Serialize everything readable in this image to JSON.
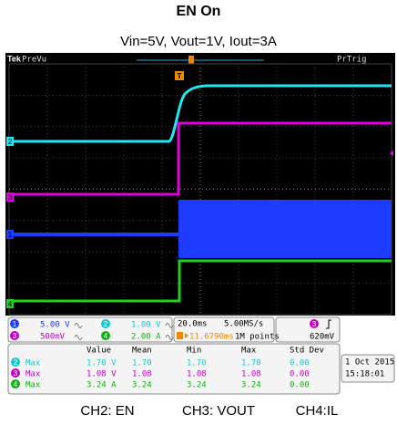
{
  "title": "EN On",
  "subtitle": "Vin=5V, Vout=1V, Iout=3A",
  "scope": {
    "brand": "Tek",
    "mode": "PreVu",
    "trigger_status": "PrTrig",
    "channel_markers": [
      "2",
      "3",
      "1",
      "4"
    ],
    "channels": [
      {
        "id": "1",
        "scale": "5.00 V"
      },
      {
        "id": "2",
        "scale": "1.00 V"
      },
      {
        "id": "3",
        "scale": "500mV"
      },
      {
        "id": "4",
        "scale": "2.00 A"
      }
    ],
    "timebase": {
      "scale": "20.0ms",
      "sample_rate": "5.00MS/s",
      "trigger_position": "11.6790ms",
      "record_length": "1M points"
    },
    "trigger": {
      "channel": "3",
      "level": "620mV"
    },
    "measurements": {
      "headers": [
        "Value",
        "Mean",
        "Min",
        "Max",
        "Std Dev"
      ],
      "rows": [
        {
          "channel": "2",
          "type": "Max",
          "cells": [
            "1.70 V",
            "1.70",
            "1.70",
            "1.70",
            "0.00"
          ]
        },
        {
          "channel": "3",
          "type": "Max",
          "cells": [
            "1.08 V",
            "1.08",
            "1.08",
            "1.08",
            "0.00"
          ]
        },
        {
          "channel": "4",
          "type": "Max",
          "cells": [
            "3.24 A",
            "3.24",
            "3.24",
            "3.24",
            "0.00"
          ]
        }
      ]
    },
    "date": "1 Oct 2015",
    "time": "15:18:01"
  },
  "caption": [
    "CH2: EN",
    "CH3: VOUT",
    "CH4:IL"
  ]
}
